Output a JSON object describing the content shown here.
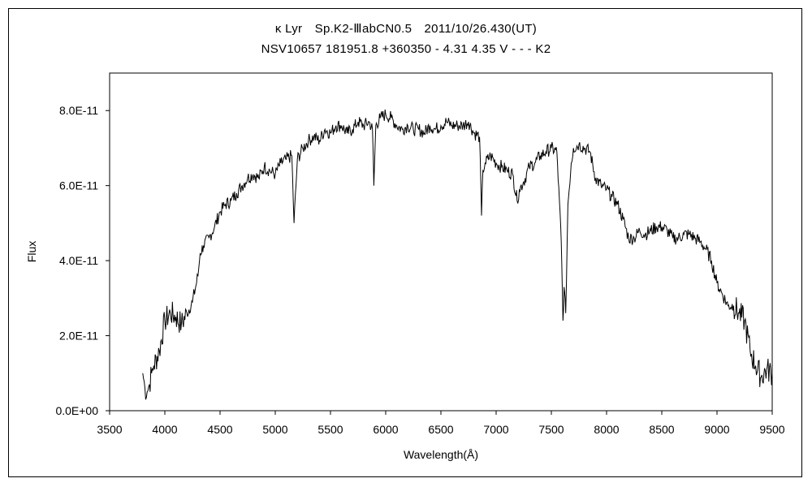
{
  "header": {
    "line1": "κ Lyr　Sp.K2-ⅢabCN0.5　2011/10/26.430(UT)",
    "line2": "NSV10657 181951.8 +360350 - 4.31 4.35 V - - - K2"
  },
  "colors": {
    "line": "#000000",
    "background": "#ffffff"
  },
  "chart_data": {
    "type": "line",
    "xlabel": "Wavelength(Å)",
    "ylabel": "Flux",
    "xlim": [
      3500,
      9500
    ],
    "ylim": [
      0,
      9e-11
    ],
    "x_ticks": [
      3500,
      4000,
      4500,
      5000,
      5500,
      6000,
      6500,
      7000,
      7500,
      8000,
      8500,
      9000,
      9500
    ],
    "x_tick_labels": [
      "3500",
      "4000",
      "4500",
      "5000",
      "5500",
      "6000",
      "6500",
      "7000",
      "7500",
      "8000",
      "8500",
      "9000",
      "9500"
    ],
    "y_ticks": [
      0,
      2e-11,
      4e-11,
      6e-11,
      8e-11
    ],
    "y_tick_labels": [
      "0.0E+00",
      "2.0E-11",
      "4.0E-11",
      "6.0E-11",
      "8.0E-11"
    ],
    "grid": false,
    "series": [
      {
        "x": [
          3800,
          3820,
          3840,
          3860,
          3880,
          3900,
          3950,
          4000,
          4050,
          4100,
          4150,
          4200,
          4250,
          4300,
          4320,
          4350,
          4400,
          4450,
          4500,
          4550,
          4600,
          4650,
          4700,
          4750,
          4800,
          4850,
          4900,
          4950,
          5000,
          5050,
          5100,
          5150,
          5170,
          5200,
          5250,
          5300,
          5350,
          5400,
          5450,
          5500,
          5550,
          5600,
          5650,
          5700,
          5750,
          5800,
          5850,
          5880,
          5893,
          5910,
          5950,
          6000,
          6050,
          6100,
          6150,
          6200,
          6250,
          6300,
          6350,
          6400,
          6450,
          6500,
          6550,
          6600,
          6650,
          6700,
          6750,
          6800,
          6850,
          6868,
          6880,
          6900,
          6950,
          7000,
          7050,
          7100,
          7150,
          7190,
          7210,
          7250,
          7300,
          7350,
          7400,
          7450,
          7500,
          7550,
          7590,
          7605,
          7615,
          7630,
          7650,
          7680,
          7700,
          7750,
          7800,
          7850,
          7900,
          7950,
          8000,
          8050,
          8100,
          8150,
          8200,
          8250,
          8300,
          8350,
          8400,
          8450,
          8500,
          8550,
          8600,
          8650,
          8700,
          8750,
          8800,
          8850,
          8900,
          8950,
          9000,
          9050,
          9100,
          9150,
          9200,
          9250,
          9300,
          9350,
          9400,
          9450,
          9500
        ],
        "y": [
          1e-11,
          6e-12,
          5e-12,
          7e-12,
          1e-11,
          1.2e-11,
          1.6e-11,
          2.4e-11,
          2.6e-11,
          2.5e-11,
          2.3e-11,
          2.6e-11,
          2.9e-11,
          3.6e-11,
          4.2e-11,
          4.4e-11,
          4.6e-11,
          4.9e-11,
          5.3e-11,
          5.5e-11,
          5.6e-11,
          5.8e-11,
          6e-11,
          6.2e-11,
          6.3e-11,
          6.2e-11,
          6.5e-11,
          6.4e-11,
          6.3e-11,
          6.6e-11,
          6.7e-11,
          6.8e-11,
          5e-11,
          6.7e-11,
          7e-11,
          7.2e-11,
          7.3e-11,
          7.2e-11,
          7.5e-11,
          7.4e-11,
          7.6e-11,
          7.6e-11,
          7.4e-11,
          7.5e-11,
          7.7e-11,
          7.6e-11,
          7.7e-11,
          7.5e-11,
          6e-11,
          7.6e-11,
          7.8e-11,
          7.9e-11,
          7.8e-11,
          7.6e-11,
          7.5e-11,
          7.6e-11,
          7.5e-11,
          7.5e-11,
          7.4e-11,
          7.6e-11,
          7.5e-11,
          7.6e-11,
          7.7e-11,
          7.6e-11,
          7.6e-11,
          7.6e-11,
          7.7e-11,
          7.4e-11,
          7.3e-11,
          5.2e-11,
          6.4e-11,
          6.6e-11,
          6.8e-11,
          6.6e-11,
          6.5e-11,
          6.4e-11,
          6.3e-11,
          5.6e-11,
          5.9e-11,
          6.1e-11,
          6.5e-11,
          6.6e-11,
          6.8e-11,
          6.9e-11,
          7e-11,
          6.9e-11,
          4.5e-11,
          2.4e-11,
          3.3e-11,
          2.6e-11,
          5.5e-11,
          6.6e-11,
          7e-11,
          7.1e-11,
          7e-11,
          6.9e-11,
          6.2e-11,
          6e-11,
          5.9e-11,
          5.7e-11,
          5.5e-11,
          5.1e-11,
          4.6e-11,
          4.6e-11,
          4.8e-11,
          4.7e-11,
          4.8e-11,
          4.9e-11,
          4.9e-11,
          4.8e-11,
          4.6e-11,
          4.6e-11,
          4.7e-11,
          4.7e-11,
          4.6e-11,
          4.5e-11,
          4.3e-11,
          4e-11,
          3.4e-11,
          3.1e-11,
          2.8e-11,
          2.8e-11,
          2.6e-11,
          2.4e-11,
          1.6e-11,
          1.2e-11,
          9e-12,
          1.1e-11,
          1e-11
        ]
      }
    ]
  }
}
